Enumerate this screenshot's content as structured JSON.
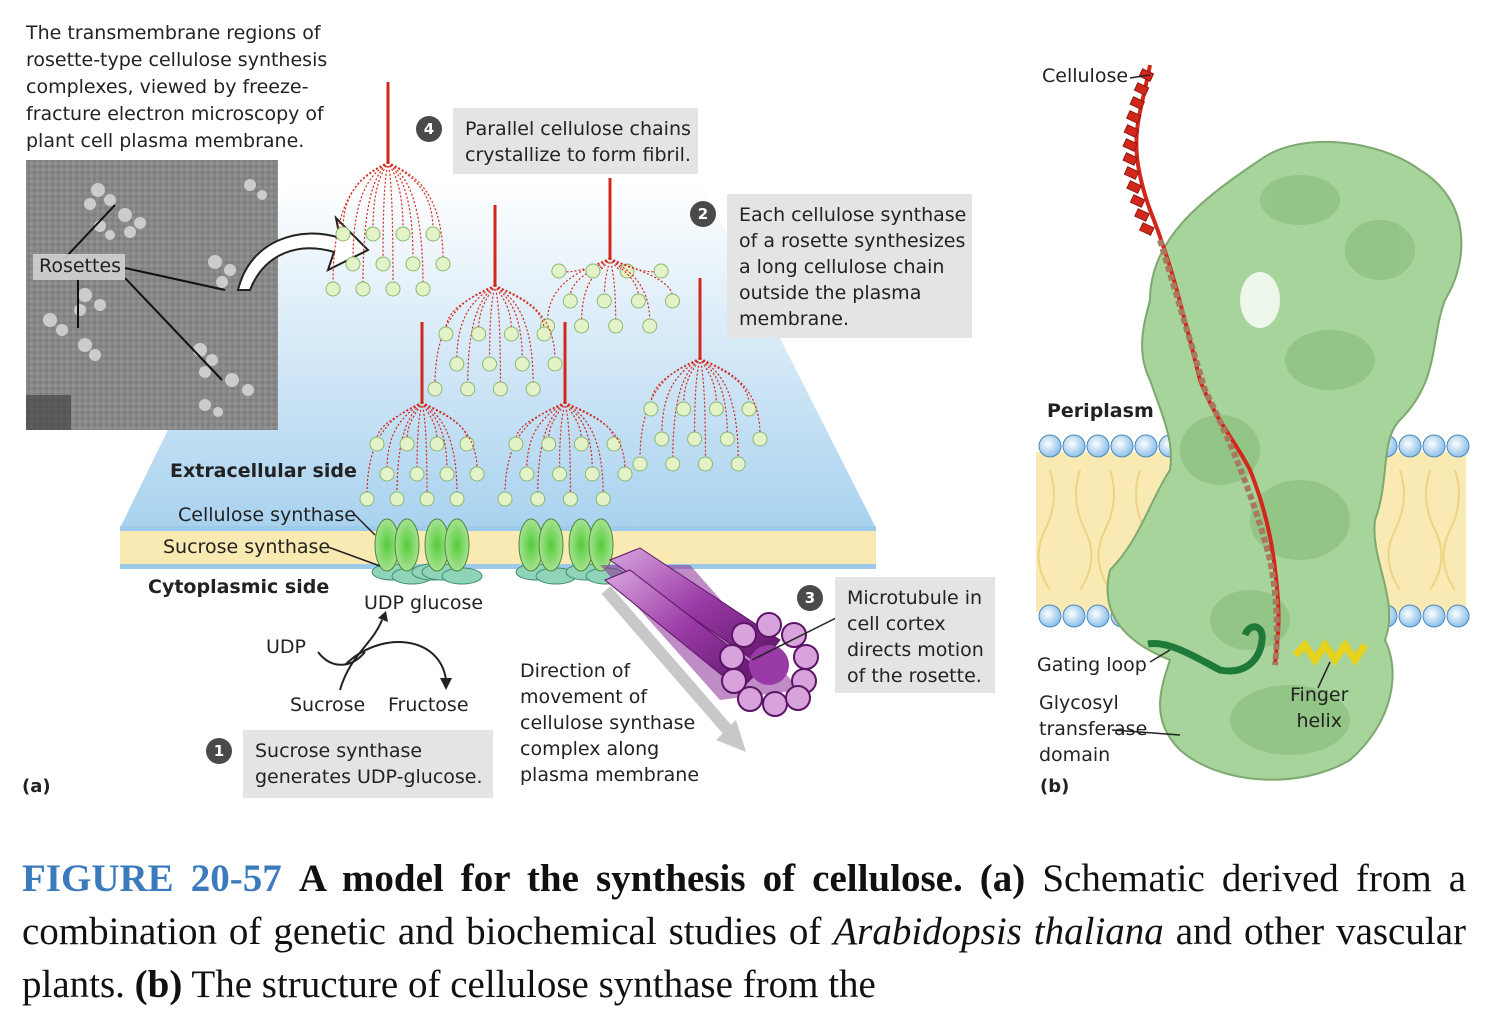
{
  "panel_a": {
    "micrograph_caption": "The transmembrane regions of\nrosette-type cellulose synthesis\ncomplexes, viewed by freeze-\nfracture electron microscopy of\nplant cell plasma membrane.",
    "rosettes_label": "Rosettes",
    "extracellular_side": "Extracellular side",
    "cellulose_synthase": "Cellulose synthase",
    "sucrose_synthase": "Sucrose synthase",
    "cytoplasmic_side": "Cytoplasmic side",
    "udp_glucose": "UDP glucose",
    "udp": "UDP",
    "sucrose": "Sucrose",
    "fructose": "Fructose",
    "direction_text": "Direction of\nmovement of\ncellulose synthase\ncomplex along\nplasma membrane",
    "panel_letter": "(a)",
    "steps": [
      {
        "number": "1",
        "text": "Sucrose synthase\ngenerates UDP-glucose."
      },
      {
        "number": "2",
        "text": "Each cellulose synthase\nof a rosette synthesizes\na long cellulose chain\noutside the plasma\nmembrane."
      },
      {
        "number": "3",
        "text": "Microtubule in\ncell cortex\ndirects motion\nof the rosette."
      },
      {
        "number": "4",
        "text": "Parallel cellulose chains\ncrystallize to form fibril."
      }
    ]
  },
  "panel_b": {
    "cellulose": "Cellulose",
    "periplasm": "Periplasm",
    "gating_loop": "Gating loop",
    "glycosyl_domain": "Glycosyl\ntransferase\ndomain",
    "finger_helix": "Finger\nhelix",
    "panel_letter": "(b)"
  },
  "caption": {
    "figure_number": "FIGURE 20-57",
    "title": "A model for the synthesis of cellulose.",
    "part_a": "(a)",
    "text_a1": "Schematic derived from a combination of genetic and biochemical studies of",
    "species": "Arabidopsis thaliana",
    "text_a2": "and other vascular plants.",
    "part_b": "(b)",
    "text_b": "The structure of cellulose synthase from the"
  }
}
